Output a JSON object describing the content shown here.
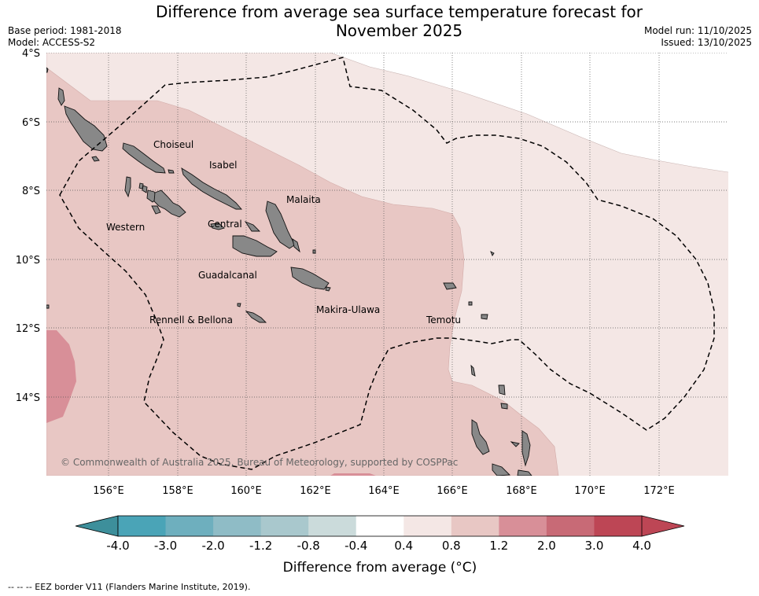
{
  "title_line1": "Difference from average sea surface temperature forecast for",
  "title_line2": "November 2025",
  "base_period": "Base period: 1981-2018",
  "model": "Model: ACCESS-S2",
  "model_run": "Model run: 11/10/2025",
  "issued": "Issued: 13/10/2025",
  "copyright": "© Commonwealth of Australia 2025, Bureau of Meteorology, supported by COSPPac",
  "lat_ticks": [
    "4°S",
    "6°S",
    "8°S",
    "10°S",
    "12°S",
    "14°S"
  ],
  "lon_ticks": [
    "156°E",
    "158°E",
    "160°E",
    "162°E",
    "164°E",
    "166°E",
    "168°E",
    "170°E",
    "172°E"
  ],
  "provinces": [
    "Choiseul",
    "Isabel",
    "Malaita",
    "Western",
    "Central",
    "Guadalcanal",
    "Rennell & Bellona",
    "Makira-Ulawa",
    "Temotu"
  ],
  "colorbar": {
    "ticks": [
      "-4.0",
      "-3.0",
      "-2.0",
      "-1.2",
      "-0.8",
      "-0.4",
      "0.4",
      "0.8",
      "1.2",
      "2.0",
      "3.0",
      "4.0"
    ],
    "colors": [
      "#3d8f9b",
      "#4aa4b7",
      "#6eafbe",
      "#8fbcc6",
      "#a9c8cd",
      "#cbdbdb",
      "#ffffff",
      "#f4e7e5",
      "#e8c7c4",
      "#d88f98",
      "#c86a76",
      "#bd4655"
    ],
    "label": "Difference from average (°C)"
  },
  "footer": "--  --  -- EEZ border V11 (Flanders Marine Institute, 2019)."
}
